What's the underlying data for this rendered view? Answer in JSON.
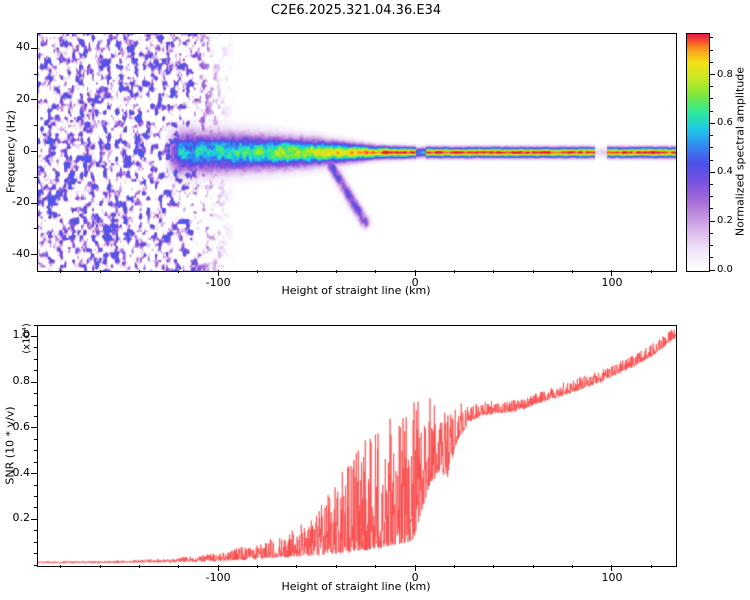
{
  "title": "C2E6.2025.321.04.36.E34",
  "colors": {
    "frame": "#000000",
    "background": "#ffffff",
    "snr_line": "#f84040"
  },
  "chart_data": [
    {
      "type": "heatmap",
      "title": "C2E6.2025.321.04.36.E34",
      "xlabel": "Height of straight line (km)",
      "ylabel": "Frequency (Hz)",
      "xlim": [
        -192,
        132
      ],
      "ylim": [
        -46,
        46
      ],
      "grid": false,
      "xticks": {
        "values": [
          -100,
          0,
          100
        ],
        "labels": [
          "-100",
          "0",
          "100"
        ],
        "minor_step": 20
      },
      "yticks": {
        "values": [
          -40,
          -20,
          0,
          20,
          40
        ],
        "labels": [
          "-40",
          "-20",
          "0",
          "20",
          "40"
        ],
        "minor_step": 10
      },
      "colorbar": {
        "label": "Normalized spectral amplitude",
        "range": [
          0,
          0.97
        ],
        "ticks": {
          "values": [
            0,
            0.2,
            0.4,
            0.6,
            0.8
          ],
          "labels": [
            "0.0",
            "0.2",
            "0.4",
            "0.6",
            "0.8"
          ],
          "minor_step": 0.05
        }
      },
      "colormap": [
        [
          0,
          "#ffffff"
        ],
        [
          0.08,
          "#f3e8fa"
        ],
        [
          0.18,
          "#d4aee8"
        ],
        [
          0.28,
          "#a96fd8"
        ],
        [
          0.36,
          "#7a52e0"
        ],
        [
          0.44,
          "#4b50e8"
        ],
        [
          0.52,
          "#2f8ff0"
        ],
        [
          0.58,
          "#1fc9e8"
        ],
        [
          0.65,
          "#2ee89a"
        ],
        [
          0.72,
          "#7de83c"
        ],
        [
          0.79,
          "#c8e822"
        ],
        [
          0.85,
          "#f2e218"
        ],
        [
          0.9,
          "#f9a81c"
        ],
        [
          0.94,
          "#f55028"
        ],
        [
          0.97,
          "#e4184c"
        ]
      ],
      "structure": {
        "description": "Dense violet speckle noise left of -120 km fading out by about -95 km; a horizontal spectral band centred on 0 Hz that narrows and strengthens toward the right, becoming a thin continuous red ridge from about -20 km to 132 km; a faint diagonal streak descends from (-44,-4) to (-26,-27); band is broken near 0-5 km and 91-97 km",
        "noise": {
          "fade_start_km": -125,
          "fade_end_km": -92,
          "threshold": 0.45,
          "gain": 1.6,
          "max_amp": 0.45
        },
        "band": {
          "amp": {
            "x": [
              -128,
              -120,
              -105,
              -85,
              -65,
              -45,
              -30,
              -15,
              0,
              132
            ],
            "v": [
              0,
              0.55,
              0.6,
              0.66,
              0.74,
              0.82,
              0.9,
              0.95,
              0.96,
              0.96
            ]
          },
          "sigma": {
            "x": [
              -128,
              -100,
              -75,
              -50,
              -35,
              -20,
              0,
              132
            ],
            "v": [
              5.5,
              5.0,
              4.2,
              3.2,
              2.4,
              1.6,
              1.3,
              1.3
            ]
          },
          "center_hz": 0,
          "gaps": [
            [
              0,
              5,
              0.55
            ],
            [
              91,
              97,
              0.12
            ]
          ]
        },
        "streak": {
          "x0": -44,
          "y0": -4,
          "x1": -26,
          "y1": -27,
          "sigma": 1.6,
          "amp": 0.42
        }
      }
    },
    {
      "type": "line",
      "xlabel": "Height of straight line (km)",
      "ylabel": "SNR (10 * v/v)",
      "y_scale_label": "(x10⁴)",
      "xlim": [
        -192,
        132
      ],
      "ylim": [
        0,
        1.05
      ],
      "grid": false,
      "xticks": {
        "values": [
          -100,
          0,
          100
        ],
        "labels": [
          "-100",
          "0",
          "100"
        ],
        "minor_step": 20
      },
      "yticks": {
        "values": [
          0.2,
          0.4,
          0.6,
          0.8,
          1.0
        ],
        "labels": [
          "0.2",
          "0.4",
          "0.6",
          "0.8",
          "1.0"
        ],
        "minor_step": 0.05
      },
      "series": [
        {
          "name": "SNR",
          "color": "#f84040",
          "envelope": {
            "x": [
              -192,
              -170,
              -150,
              -132,
              -118,
              -105,
              -95,
              -85,
              -75,
              -66,
              -58,
              -50,
              -43,
              -36,
              -30,
              -24,
              -18,
              -12,
              -6,
              -1,
              3,
              7,
              12,
              16,
              21,
              27,
              34,
              42,
              52,
              62,
              72,
              82,
              92,
              102,
              112,
              120,
              127,
              132
            ],
            "base": [
              0.015,
              0.015,
              0.016,
              0.018,
              0.02,
              0.022,
              0.025,
              0.03,
              0.035,
              0.04,
              0.045,
              0.05,
              0.055,
              0.06,
              0.065,
              0.07,
              0.08,
              0.09,
              0.1,
              0.12,
              0.25,
              0.35,
              0.42,
              0.38,
              0.55,
              0.63,
              0.66,
              0.67,
              0.68,
              0.71,
              0.74,
              0.77,
              0.8,
              0.84,
              0.88,
              0.92,
              0.97,
              1.0
            ],
            "spike": [
              0.004,
              0.005,
              0.006,
              0.01,
              0.02,
              0.03,
              0.045,
              0.06,
              0.08,
              0.1,
              0.14,
              0.2,
              0.28,
              0.38,
              0.45,
              0.52,
              0.55,
              0.58,
              0.55,
              0.6,
              0.55,
              0.4,
              0.25,
              0.3,
              0.18,
              0.08,
              0.06,
              0.05,
              0.05,
              0.05,
              0.05,
              0.05,
              0.05,
              0.05,
              0.05,
              0.05,
              0.05,
              0.04
            ]
          }
        }
      ]
    }
  ]
}
